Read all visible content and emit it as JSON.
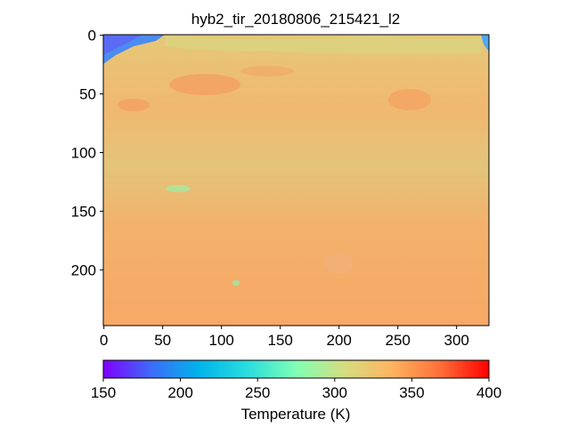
{
  "chart_data": {
    "type": "image",
    "title": "hyb2_tir_20180806_215421_l2",
    "xlim": [
      -0.5,
      327.5
    ],
    "ylim": [
      247.5,
      -0.5
    ],
    "xticks": [
      0,
      50,
      100,
      150,
      200,
      250,
      300
    ],
    "yticks": [
      0,
      50,
      100,
      150,
      200
    ],
    "colorbar": {
      "label": "Temperature (K)",
      "clim": [
        150,
        400
      ],
      "ticks": [
        150,
        200,
        250,
        300,
        350,
        400
      ],
      "colormap": "rainbow"
    }
  }
}
